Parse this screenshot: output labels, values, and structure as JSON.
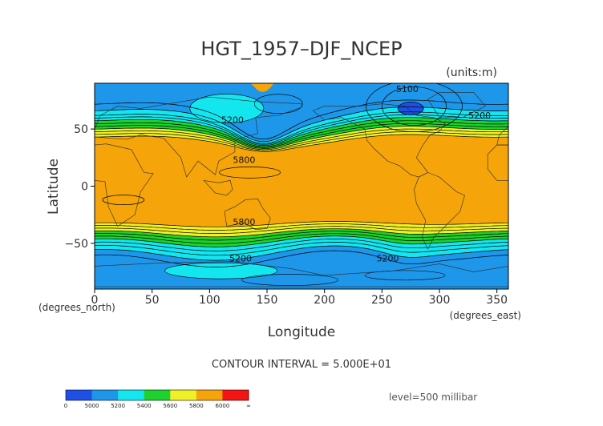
{
  "title": "HGT_1957–DJF_NCEP",
  "units_label": "(units:m)",
  "xlabel": "Longitude",
  "ylabel": "Latitude",
  "x_axis_note": "(degrees_east)",
  "y_axis_note": "(degrees_north)",
  "contour_interval_text": "CONTOUR INTERVAL = 5.000E+01",
  "level_text": "level=500 millibar",
  "colors": {
    "band_below_5000": "#1e50e8",
    "band_5000_5200": "#1e96ea",
    "band_5200_5400": "#14e6f0",
    "band_5400_5600": "#1ed22d",
    "band_5600_5800": "#f0f028",
    "band_5800_6000": "#f5a50a",
    "band_above_6000": "#f51414",
    "contour": "#000000",
    "coastline": "#2a2a2a"
  },
  "chart_data": {
    "type": "heatmap",
    "title": "HGT_1957–DJF_NCEP",
    "xlabel": "Longitude",
    "ylabel": "Latitude",
    "xlim": [
      0,
      360
    ],
    "ylim": [
      -90,
      90
    ],
    "x_ticks": [
      "0",
      "50",
      "100",
      "150",
      "200",
      "250",
      "300",
      "350"
    ],
    "x_tick_values": [
      0,
      50,
      100,
      150,
      200,
      250,
      300,
      350
    ],
    "y_ticks": [
      "50",
      "0",
      "−50"
    ],
    "y_tick_values": [
      50,
      0,
      -50
    ],
    "colorbar": {
      "labels": [
        "0",
        "5000",
        "5200",
        "5400",
        "5600",
        "5800",
        "6000",
        "∞"
      ],
      "colors": [
        "#1e50e8",
        "#1e96ea",
        "#14e6f0",
        "#1ed22d",
        "#f0f028",
        "#f5a50a",
        "#f51414"
      ]
    },
    "contour_labels": [
      {
        "text": "5100",
        "lon": 272,
        "lat": 85
      },
      {
        "text": "5200",
        "lon": 335,
        "lat": 62
      },
      {
        "text": "5200",
        "lon": 120,
        "lat": 58
      },
      {
        "text": "5200",
        "lon": 127,
        "lat": -63
      },
      {
        "text": "5200",
        "lon": 255,
        "lat": -63
      },
      {
        "text": "5800",
        "lon": 130,
        "lat": 23
      },
      {
        "text": "5800",
        "lon": 130,
        "lat": -31
      }
    ],
    "grid": false
  }
}
